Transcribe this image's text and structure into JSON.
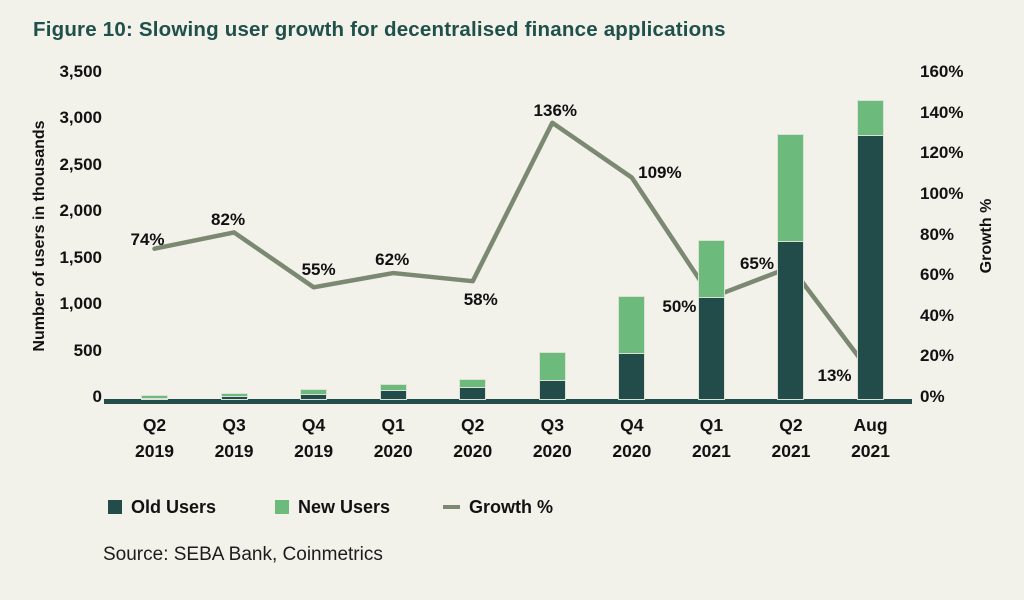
{
  "page": {
    "background": "#f2f1ea",
    "title": "Figure 10: Slowing user growth for decentralised finance applications",
    "title_color": "#20504a",
    "source": "Source: SEBA Bank, Coinmetrics"
  },
  "chart_data": {
    "type": "bar",
    "subtype": "stacked-bars-with-line",
    "title": "Figure 10: Slowing user growth for decentralised finance applications",
    "categories": [
      "Q2 2019",
      "Q3 2019",
      "Q4 2019",
      "Q1 2020",
      "Q2 2020",
      "Q3 2020",
      "Q4 2020",
      "Q1 2021",
      "Q2 2021",
      "Aug 2021"
    ],
    "categories_two_line": [
      [
        "Q2",
        "2019"
      ],
      [
        "Q3",
        "2019"
      ],
      [
        "Q4",
        "2019"
      ],
      [
        "Q1",
        "2020"
      ],
      [
        "Q2",
        "2020"
      ],
      [
        "Q3",
        "2020"
      ],
      [
        "Q4",
        "2020"
      ],
      [
        "Q1",
        "2021"
      ],
      [
        "Q2",
        "2021"
      ],
      [
        "Aug",
        "2021"
      ]
    ],
    "series": [
      {
        "name": "Old Users",
        "type": "bar",
        "stack": "users",
        "axis": "left",
        "color": "#214c49",
        "values": [
          10,
          30,
          55,
          95,
          130,
          200,
          500,
          1100,
          1700,
          2840
        ]
      },
      {
        "name": "New Users",
        "type": "bar",
        "stack": "users",
        "axis": "left",
        "color": "#6dba7d",
        "values": [
          20,
          25,
          40,
          60,
          70,
          300,
          600,
          600,
          1140,
          370
        ]
      },
      {
        "name": "Growth %",
        "type": "line",
        "axis": "right",
        "color": "#7b8973",
        "values": [
          74,
          82,
          55,
          62,
          58,
          136,
          109,
          50,
          65,
          13
        ],
        "point_labels": [
          "74%",
          "82%",
          "55%",
          "62%",
          "58%",
          "136%",
          "109%",
          "50%",
          "65%",
          "13%"
        ],
        "label_offsets": [
          [
            -7,
            -9
          ],
          [
            -6,
            -12
          ],
          [
            5,
            -17
          ],
          [
            -1,
            -13
          ],
          [
            8,
            19
          ],
          [
            3,
            -12
          ],
          [
            28,
            -5
          ],
          [
            -32,
            10
          ],
          [
            -34,
            -3
          ],
          [
            -36,
            3
          ]
        ]
      }
    ],
    "left_axis": {
      "label": "Number of users in thousands",
      "min": 0,
      "max": 3500,
      "ticks": [
        "0",
        "500",
        "1,000",
        "1,500",
        "2,000",
        "2,500",
        "3,000",
        "3,500"
      ]
    },
    "right_axis": {
      "label": "Growth %",
      "min": 0,
      "max": 160,
      "ticks": [
        "0%",
        "20%",
        "40%",
        "60%",
        "80%",
        "100%",
        "120%",
        "140%",
        "160%"
      ]
    },
    "legend": [
      {
        "label": "Old Users",
        "marker": "square",
        "color": "#214c49"
      },
      {
        "label": "New Users",
        "marker": "square",
        "color": "#6dba7d"
      },
      {
        "label": "Growth %",
        "marker": "line",
        "color": "#7b8973"
      }
    ],
    "legend_position": "bottom",
    "grid": false,
    "source": "Source: SEBA Bank, Coinmetrics"
  }
}
